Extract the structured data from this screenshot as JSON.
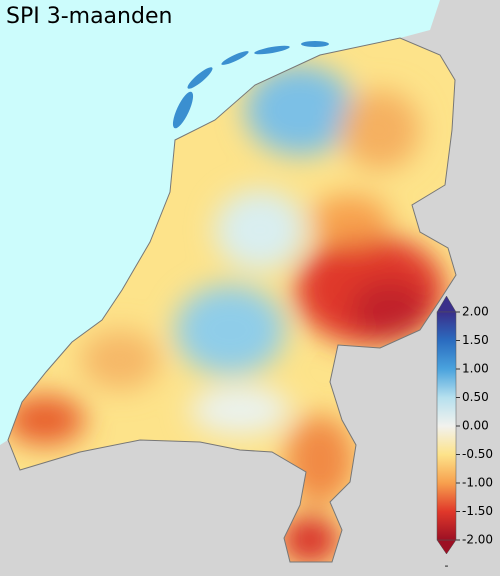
{
  "title": "SPI 3-maanden",
  "colorbar": {
    "lim": [
      -2,
      2
    ],
    "ticks": [
      {
        "value": 2,
        "label": "2.00"
      },
      {
        "value": 1.5,
        "label": "1.50"
      },
      {
        "value": 1,
        "label": "1.00"
      },
      {
        "value": 0.5,
        "label": "0.50"
      },
      {
        "value": 0,
        "label": "0.00"
      },
      {
        "value": -0.5,
        "label": "-0.50"
      },
      {
        "value": -1,
        "label": "-1.00"
      },
      {
        "value": -1.5,
        "label": "-1.50"
      },
      {
        "value": -2,
        "label": "-2.00"
      }
    ],
    "colors": [
      "#3a2f8a",
      "#2b6cc0",
      "#4aa3dd",
      "#b6e0ee",
      "#f2f2ee",
      "#fde38a",
      "#f7a04e",
      "#e0382a",
      "#9c1024"
    ],
    "note": "-"
  }
}
